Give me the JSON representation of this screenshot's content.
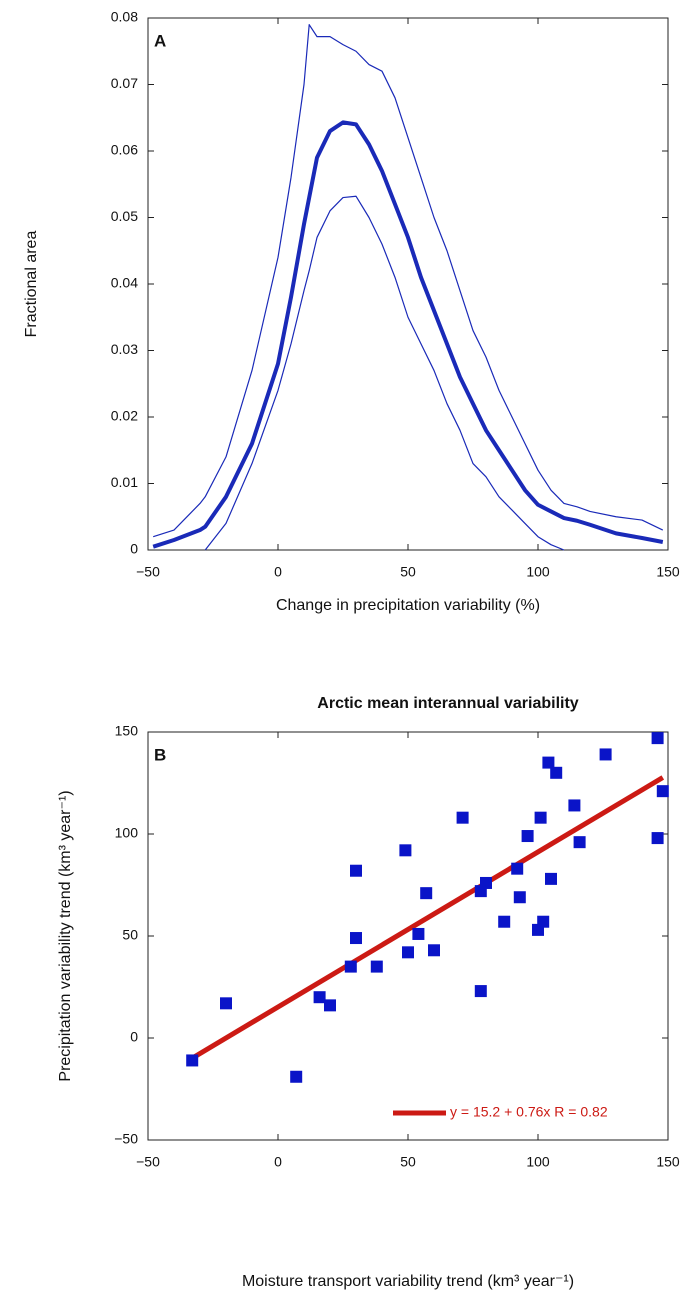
{
  "chart_data": [
    {
      "type": "line",
      "panel_label": "A",
      "xlabel": "Change in precipitation variability (%)",
      "ylabel": "Fractional area",
      "xlim": [
        -50,
        150
      ],
      "ylim": [
        0,
        0.08
      ],
      "xticks": [
        {
          "value": -50,
          "label": "−50"
        },
        0,
        50,
        100,
        150
      ],
      "yticks": [
        0,
        0.01,
        0.02,
        0.03,
        0.04,
        0.05,
        0.06,
        0.07,
        0.08
      ],
      "x": [
        -48,
        -40,
        -30,
        -28,
        -20,
        -10,
        0,
        5,
        10,
        12,
        15,
        20,
        25,
        30,
        35,
        40,
        45,
        50,
        55,
        60,
        65,
        70,
        75,
        80,
        85,
        90,
        95,
        100,
        105,
        110,
        115,
        120,
        130,
        140,
        148
      ],
      "series": [
        {
          "color": "#1a2ab8",
          "line_width": 1.2,
          "values": [
            0.002,
            0.003,
            0.007,
            0.008,
            0.014,
            0.027,
            0.044,
            0.056,
            0.07,
            0.079,
            0.0772,
            0.0772,
            0.076,
            0.075,
            0.073,
            0.072,
            0.068,
            0.062,
            0.056,
            0.05,
            0.045,
            0.039,
            0.033,
            0.029,
            0.024,
            0.02,
            0.016,
            0.012,
            0.009,
            0.007,
            0.0065,
            0.0058,
            0.005,
            0.0045,
            0.003
          ]
        },
        {
          "color": "#1a2ab8",
          "line_width": 4,
          "values": [
            0.0005,
            0.0015,
            0.003,
            0.0035,
            0.008,
            0.016,
            0.028,
            0.038,
            0.049,
            0.053,
            0.059,
            0.063,
            0.0643,
            0.064,
            0.061,
            0.057,
            0.052,
            0.047,
            0.041,
            0.036,
            0.031,
            0.026,
            0.022,
            0.018,
            0.015,
            0.012,
            0.009,
            0.0068,
            0.0058,
            0.0048,
            0.0044,
            0.0038,
            0.0025,
            0.0018,
            0.0012
          ]
        },
        {
          "color": "#1a2ab8",
          "line_width": 1.2,
          "values": [
            null,
            null,
            null,
            0,
            0.004,
            0.013,
            0.024,
            0.031,
            0.039,
            0.042,
            0.047,
            0.051,
            0.053,
            0.0532,
            0.05,
            0.046,
            0.041,
            0.035,
            0.031,
            0.027,
            0.022,
            0.018,
            0.013,
            0.011,
            0.008,
            0.006,
            0.004,
            0.002,
            0.0008,
            0,
            null,
            null,
            null,
            null,
            null
          ]
        }
      ]
    },
    {
      "type": "scatter",
      "panel_label": "B",
      "title": "Arctic mean interannual variability",
      "xlabel": "Moisture transport variability trend (km³ year⁻¹)",
      "ylabel": "Precipitation variability trend (km³ year⁻¹)",
      "xlim": [
        -50,
        150
      ],
      "ylim": [
        -50,
        150
      ],
      "xticks": [
        {
          "value": -50,
          "label": "−50"
        },
        0,
        50,
        100,
        150
      ],
      "yticks": [
        {
          "value": -50,
          "label": "−50"
        },
        0,
        50,
        100,
        150
      ],
      "series": [
        {
          "color": "#0a14c8",
          "marker": "square",
          "x": [
            -33,
            -20,
            7,
            16,
            20,
            28,
            30,
            30,
            38,
            49,
            50,
            54,
            57,
            60,
            71,
            78,
            78,
            80,
            87,
            92,
            93,
            96,
            100,
            101,
            102,
            104,
            105,
            107,
            114,
            116,
            126,
            146,
            146,
            148
          ],
          "values": [
            -11,
            17,
            -19,
            20,
            16,
            35,
            82,
            49,
            35,
            92,
            42,
            51,
            71,
            43,
            108,
            72,
            23,
            76,
            57,
            83,
            69,
            99,
            53,
            108,
            57,
            135,
            78,
            130,
            114,
            96,
            139,
            147,
            98,
            121
          ]
        }
      ],
      "fit": {
        "intercept": 15.2,
        "slope": 0.76,
        "x": [
          -32,
          148
        ],
        "color": "#cc1a14",
        "label": "y = 15.2 + 0.76x  R = 0.82"
      }
    }
  ]
}
